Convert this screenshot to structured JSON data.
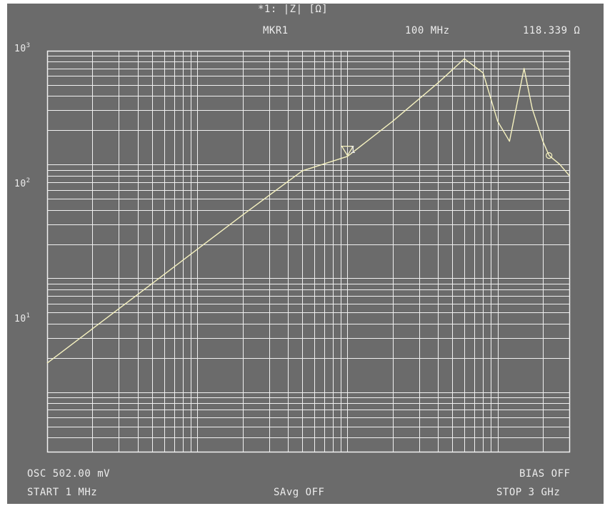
{
  "header": {
    "trace_label": "*1: |Z| [Ω]",
    "marker_name": "MKR1",
    "marker_freq": "100 MHz",
    "marker_value": "118.339 Ω"
  },
  "footer": {
    "osc": "OSC 502.00 mV",
    "bias": "BIAS OFF",
    "start": "START  1 MHz",
    "savg": "SAvg OFF",
    "stop": "STOP  3 GHz"
  },
  "y_axis": {
    "base": "10",
    "exp_top": "3",
    "exp_mid": "2",
    "exp_low": "1"
  },
  "marker": {
    "number": "1"
  },
  "colors": {
    "screen": "#6b6b6b",
    "grid": "#f0f0f0",
    "trace": "#f6f2c0",
    "text": "#ececec"
  },
  "chart_data": {
    "type": "line",
    "x_scale": "log",
    "y_scale": "log",
    "xlim": [
      1000000,
      3000000000
    ],
    "ylim": [
      0.3,
      1000
    ],
    "ylabel": "|Z| [Ω]",
    "series": [
      {
        "x": [
          1000000,
          2000000,
          5000000,
          10000000,
          20000000,
          50000000,
          100000000,
          200000000,
          400000000,
          600000000,
          800000000,
          1000000000,
          1200000000,
          1500000000,
          1700000000,
          2000000000,
          2200000000,
          2600000000,
          3000000000
        ],
        "y": [
          1.8,
          3.6,
          9.0,
          18,
          36,
          88,
          118,
          240,
          520,
          850,
          640,
          240,
          160,
          700,
          310,
          160,
          120,
          100,
          80
        ]
      }
    ],
    "marker": {
      "x": 100000000,
      "y": 118.339
    }
  }
}
